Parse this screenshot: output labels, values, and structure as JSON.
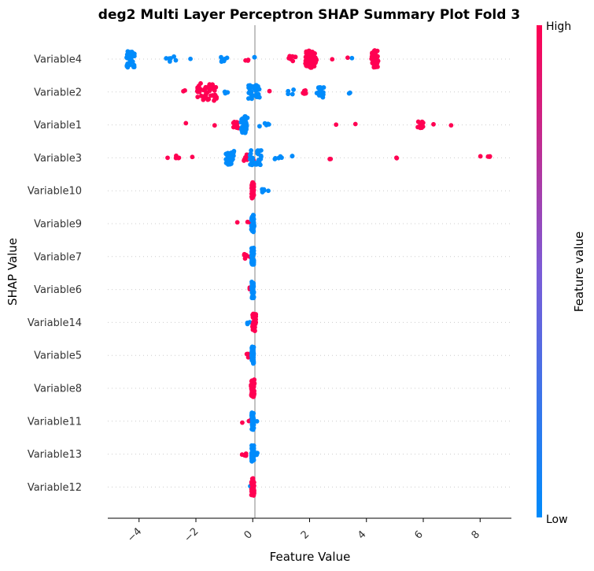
{
  "chart_data": {
    "type": "scatter",
    "title": "deg2 Multi Layer Perceptron SHAP Summary Plot Fold 3",
    "xlabel": "Feature Value",
    "ylabel": "SHAP Value",
    "xlim": [
      -5.1,
      9.1
    ],
    "x_ticks": [
      -4,
      -2,
      0,
      2,
      4,
      6,
      8
    ],
    "x_tick_labels": [
      "−4",
      "−2",
      "0",
      "2",
      "4",
      "6",
      "8"
    ],
    "colorbar": {
      "label": "Feature value",
      "high_label": "High",
      "low_label": "Low",
      "low_color": "#008bfb",
      "high_color": "#ff0052"
    },
    "colors": {
      "low": "#008bfb",
      "high": "#ff0052",
      "zero_line": "#999999",
      "row_grid": "#cccccc"
    },
    "grid": "dotted row lines",
    "features": [
      {
        "name": "Variable4",
        "clusters": [
          {
            "x": -4.3,
            "spread": 0.15,
            "n": 40,
            "c": 0
          },
          {
            "x": -2.8,
            "spread": 0.25,
            "n": 6,
            "c": 0
          },
          {
            "x": -2.2,
            "spread": 0.05,
            "n": 1,
            "c": 0
          },
          {
            "x": -1.0,
            "spread": 0.12,
            "n": 6,
            "c": 0
          },
          {
            "x": -0.2,
            "spread": 0.1,
            "n": 3,
            "c": 1
          },
          {
            "x": 0.1,
            "spread": 0.05,
            "n": 2,
            "c": 0
          },
          {
            "x": 1.4,
            "spread": 0.15,
            "n": 8,
            "c": 1
          },
          {
            "x": 2.05,
            "spread": 0.2,
            "n": 50,
            "c": 1
          },
          {
            "x": 2.8,
            "spread": 0.05,
            "n": 1,
            "c": 1
          },
          {
            "x": 3.3,
            "spread": 0.05,
            "n": 1,
            "c": 1
          },
          {
            "x": 3.5,
            "spread": 0.05,
            "n": 1,
            "c": 0
          },
          {
            "x": 4.3,
            "spread": 0.12,
            "n": 45,
            "c": 1
          }
        ]
      },
      {
        "name": "Variable2",
        "clusters": [
          {
            "x": -2.4,
            "spread": 0.05,
            "n": 2,
            "c": 1
          },
          {
            "x": -1.6,
            "spread": 0.35,
            "n": 50,
            "c": 1
          },
          {
            "x": -0.9,
            "spread": 0.1,
            "n": 4,
            "c": 0
          },
          {
            "x": 0.05,
            "spread": 0.2,
            "n": 30,
            "c": 0
          },
          {
            "x": 0.6,
            "spread": 0.05,
            "n": 1,
            "c": 1
          },
          {
            "x": 1.3,
            "spread": 0.15,
            "n": 4,
            "c": 0
          },
          {
            "x": 1.8,
            "spread": 0.1,
            "n": 6,
            "c": 1
          },
          {
            "x": 2.3,
            "spread": 0.05,
            "n": 2,
            "c": 0
          },
          {
            "x": 2.4,
            "spread": 0.1,
            "n": 25,
            "c": 0
          },
          {
            "x": 3.4,
            "spread": 0.05,
            "n": 2,
            "c": 0
          }
        ]
      },
      {
        "name": "Variable1",
        "clusters": [
          {
            "x": -2.4,
            "spread": 0.05,
            "n": 1,
            "c": 1
          },
          {
            "x": -1.3,
            "spread": 0.05,
            "n": 1,
            "c": 1
          },
          {
            "x": -0.6,
            "spread": 0.1,
            "n": 10,
            "c": 1
          },
          {
            "x": -0.3,
            "spread": 0.12,
            "n": 40,
            "c": 0
          },
          {
            "x": 0.4,
            "spread": 0.2,
            "n": 5,
            "c": 0
          },
          {
            "x": 2.9,
            "spread": 0.05,
            "n": 1,
            "c": 1
          },
          {
            "x": 3.6,
            "spread": 0.05,
            "n": 1,
            "c": 1
          },
          {
            "x": 5.9,
            "spread": 0.1,
            "n": 10,
            "c": 1
          },
          {
            "x": 6.4,
            "spread": 0.05,
            "n": 1,
            "c": 1
          },
          {
            "x": 7.0,
            "spread": 0.05,
            "n": 1,
            "c": 1
          }
        ]
      },
      {
        "name": "Variable3",
        "clusters": [
          {
            "x": -3.0,
            "spread": 0.05,
            "n": 1,
            "c": 1
          },
          {
            "x": -2.65,
            "spread": 0.1,
            "n": 4,
            "c": 1
          },
          {
            "x": -2.1,
            "spread": 0.05,
            "n": 1,
            "c": 1
          },
          {
            "x": -0.8,
            "spread": 0.15,
            "n": 30,
            "c": 0
          },
          {
            "x": -0.15,
            "spread": 0.2,
            "n": 10,
            "c": 1
          },
          {
            "x": 0.1,
            "spread": 0.2,
            "n": 35,
            "c": 0
          },
          {
            "x": 0.9,
            "spread": 0.15,
            "n": 5,
            "c": 0
          },
          {
            "x": 1.4,
            "spread": 0.05,
            "n": 2,
            "c": 0
          },
          {
            "x": 2.7,
            "spread": 0.05,
            "n": 2,
            "c": 1
          },
          {
            "x": 5.1,
            "spread": 0.05,
            "n": 2,
            "c": 1
          },
          {
            "x": 8.05,
            "spread": 0.05,
            "n": 1,
            "c": 1
          },
          {
            "x": 8.3,
            "spread": 0.05,
            "n": 3,
            "c": 1
          }
        ]
      },
      {
        "name": "Variable10",
        "clusters": [
          {
            "x": 0.0,
            "spread": 0.04,
            "n": 40,
            "c": 1
          },
          {
            "x": 0.3,
            "spread": 0.1,
            "n": 6,
            "c": 0
          },
          {
            "x": 0.55,
            "spread": 0.05,
            "n": 1,
            "c": 0
          }
        ]
      },
      {
        "name": "Variable9",
        "clusters": [
          {
            "x": -0.5,
            "spread": 0.05,
            "n": 1,
            "c": 1
          },
          {
            "x": -0.15,
            "spread": 0.05,
            "n": 2,
            "c": 1
          },
          {
            "x": 0.0,
            "spread": 0.05,
            "n": 45,
            "c": 0
          }
        ]
      },
      {
        "name": "Variable7",
        "clusters": [
          {
            "x": -0.2,
            "spread": 0.1,
            "n": 6,
            "c": 1
          },
          {
            "x": 0.0,
            "spread": 0.04,
            "n": 45,
            "c": 0
          }
        ]
      },
      {
        "name": "Variable6",
        "clusters": [
          {
            "x": -0.15,
            "spread": 0.05,
            "n": 2,
            "c": 1
          },
          {
            "x": 0.0,
            "spread": 0.04,
            "n": 45,
            "c": 0
          }
        ]
      },
      {
        "name": "Variable14",
        "clusters": [
          {
            "x": -0.15,
            "spread": 0.05,
            "n": 3,
            "c": 0
          },
          {
            "x": 0.05,
            "spread": 0.06,
            "n": 45,
            "c": 1
          }
        ]
      },
      {
        "name": "Variable5",
        "clusters": [
          {
            "x": -0.2,
            "spread": 0.05,
            "n": 3,
            "c": 1
          },
          {
            "x": 0.0,
            "spread": 0.04,
            "n": 45,
            "c": 0
          }
        ]
      },
      {
        "name": "Variable8",
        "clusters": [
          {
            "x": 0.0,
            "spread": 0.06,
            "n": 50,
            "c": 1
          }
        ]
      },
      {
        "name": "Variable11",
        "clusters": [
          {
            "x": -0.4,
            "spread": 0.05,
            "n": 1,
            "c": 1
          },
          {
            "x": -0.1,
            "spread": 0.05,
            "n": 2,
            "c": 1
          },
          {
            "x": 0.0,
            "spread": 0.04,
            "n": 45,
            "c": 0
          },
          {
            "x": 0.15,
            "spread": 0.05,
            "n": 1,
            "c": 0
          }
        ]
      },
      {
        "name": "Variable13",
        "clusters": [
          {
            "x": -0.3,
            "spread": 0.1,
            "n": 5,
            "c": 1
          },
          {
            "x": 0.0,
            "spread": 0.04,
            "n": 45,
            "c": 0
          },
          {
            "x": 0.15,
            "spread": 0.05,
            "n": 2,
            "c": 0
          }
        ]
      },
      {
        "name": "Variable12",
        "clusters": [
          {
            "x": -0.05,
            "spread": 0.04,
            "n": 3,
            "c": 0
          },
          {
            "x": 0.0,
            "spread": 0.05,
            "n": 45,
            "c": 1
          }
        ]
      }
    ]
  }
}
